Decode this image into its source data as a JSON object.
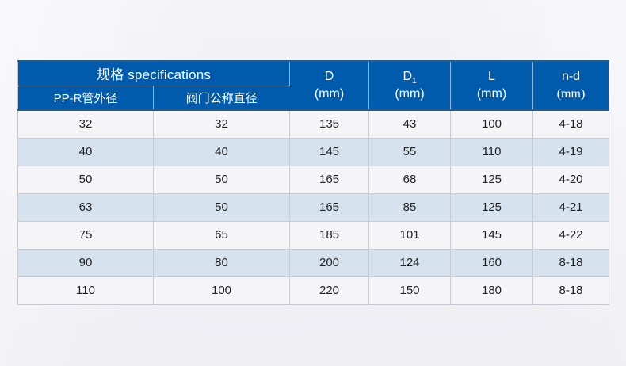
{
  "table": {
    "header": {
      "spec_group": "规格 specifications",
      "sub_columns": [
        "PP-R管外径",
        "阀门公称直径"
      ],
      "dims": [
        {
          "label": "D",
          "sub": "",
          "unit": "(mm)"
        },
        {
          "label": "D",
          "sub": "1",
          "unit": "(mm)"
        },
        {
          "label": "L",
          "sub": "",
          "unit": "(mm)"
        },
        {
          "label": "n-d",
          "sub": "",
          "unit": "(mm)"
        }
      ]
    },
    "rows": [
      [
        "32",
        "32",
        "135",
        "43",
        "100",
        "4-18"
      ],
      [
        "40",
        "40",
        "145",
        "55",
        "110",
        "4-19"
      ],
      [
        "50",
        "50",
        "165",
        "68",
        "125",
        "4-20"
      ],
      [
        "63",
        "50",
        "165",
        "85",
        "125",
        "4-21"
      ],
      [
        "75",
        "65",
        "185",
        "101",
        "145",
        "4-22"
      ],
      [
        "90",
        "80",
        "200",
        "124",
        "160",
        "8-18"
      ],
      [
        "110",
        "100",
        "220",
        "150",
        "180",
        "8-18"
      ]
    ]
  },
  "colors": {
    "header_bg": "#005BAC",
    "header_border_dark": "#1E5D8E",
    "row_light": "#F5F5F8",
    "row_alt": "#D6E3EF",
    "grid_line": "#C9CBD1",
    "outer_line": "#C5C8CE",
    "text_dark": "#1F1F1F",
    "header_text": "#FFFFFF",
    "page_bg": "#F0F0F4"
  }
}
